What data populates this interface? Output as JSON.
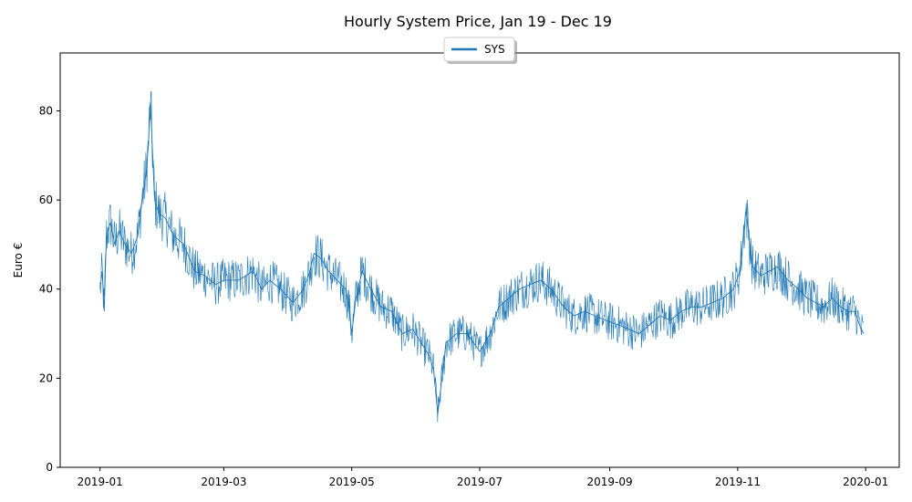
{
  "chart_data": {
    "type": "line",
    "title": "Hourly System Price, Jan 19 - Dec 19",
    "xlabel": "",
    "ylabel": "Euro €",
    "ylim": [
      0,
      93
    ],
    "xlim": [
      "2018-12-13",
      "2020-01-17"
    ],
    "grid": false,
    "legend": {
      "position": "top-center",
      "entries": [
        "SYS"
      ]
    },
    "series_color": "#1f77b4",
    "x_ticks": [
      "2019-01",
      "2019-03",
      "2019-05",
      "2019-07",
      "2019-09",
      "2019-11",
      "2020-01"
    ],
    "y_ticks": [
      0,
      20,
      40,
      60,
      80
    ],
    "series": [
      {
        "name": "SYS",
        "x": [
          "2019-01-01",
          "2019-01-02",
          "2019-01-03",
          "2019-01-04",
          "2019-01-06",
          "2019-01-08",
          "2019-01-10",
          "2019-01-13",
          "2019-01-16",
          "2019-01-19",
          "2019-01-21",
          "2019-01-23",
          "2019-01-24",
          "2019-01-25",
          "2019-01-27",
          "2019-01-29",
          "2019-02-01",
          "2019-02-05",
          "2019-02-10",
          "2019-02-15",
          "2019-02-20",
          "2019-02-25",
          "2019-03-01",
          "2019-03-08",
          "2019-03-15",
          "2019-03-19",
          "2019-03-23",
          "2019-03-28",
          "2019-04-03",
          "2019-04-08",
          "2019-04-11",
          "2019-04-13",
          "2019-04-16",
          "2019-04-20",
          "2019-04-24",
          "2019-04-28",
          "2019-04-30",
          "2019-05-01",
          "2019-05-03",
          "2019-05-06",
          "2019-05-10",
          "2019-05-15",
          "2019-05-20",
          "2019-05-25",
          "2019-05-30",
          "2019-06-03",
          "2019-06-07",
          "2019-06-09",
          "2019-06-11",
          "2019-06-15",
          "2019-06-20",
          "2019-06-25",
          "2019-06-28",
          "2019-07-01",
          "2019-07-06",
          "2019-07-10",
          "2019-07-15",
          "2019-07-20",
          "2019-07-25",
          "2019-07-30",
          "2019-08-04",
          "2019-08-10",
          "2019-08-15",
          "2019-08-20",
          "2019-08-25",
          "2019-08-30",
          "2019-09-05",
          "2019-09-10",
          "2019-09-15",
          "2019-09-20",
          "2019-09-25",
          "2019-09-30",
          "2019-10-05",
          "2019-10-10",
          "2019-10-15",
          "2019-10-20",
          "2019-10-25",
          "2019-10-30",
          "2019-11-02",
          "2019-11-05",
          "2019-11-08",
          "2019-11-12",
          "2019-11-16",
          "2019-11-20",
          "2019-11-25",
          "2019-11-30",
          "2019-12-04",
          "2019-12-08",
          "2019-12-12",
          "2019-12-16",
          "2019-12-20",
          "2019-12-24",
          "2019-12-27",
          "2019-12-29",
          "2019-12-31"
        ],
        "y": [
          40,
          44,
          35,
          52,
          55,
          50,
          53,
          50,
          48,
          52,
          60,
          66,
          72,
          82,
          60,
          57,
          56,
          52,
          50,
          44,
          43,
          41,
          42,
          42,
          44,
          40,
          42,
          40,
          37,
          40,
          44,
          48,
          47,
          44,
          42,
          40,
          35,
          30,
          38,
          44,
          40,
          36,
          35,
          30,
          31,
          28,
          25,
          22,
          12,
          28,
          30,
          30,
          28,
          26,
          30,
          36,
          38,
          40,
          41,
          42,
          40,
          36,
          34,
          35,
          34,
          33,
          32,
          31,
          30,
          32,
          34,
          33,
          35,
          36,
          36,
          37,
          38,
          40,
          44,
          58,
          45,
          43,
          44,
          45,
          42,
          40,
          38,
          37,
          36,
          38,
          36,
          35,
          35,
          32,
          30
        ]
      }
    ]
  }
}
